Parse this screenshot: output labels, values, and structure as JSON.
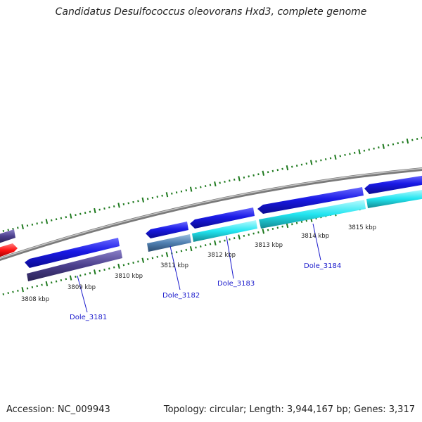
{
  "title": "Candidatus Desulfococcus oleovorans Hxd3, complete genome",
  "footer": {
    "accession": "Accession: NC_009943",
    "summary": "Topology: circular; Length: 3,944,167 bp; Genes: 3,317"
  },
  "ruler": [
    {
      "label": "3808 kbp"
    },
    {
      "label": "3809 kbp"
    },
    {
      "label": "3810 kbp"
    },
    {
      "label": "3811 kbp"
    },
    {
      "label": "3812 kbp"
    },
    {
      "label": "3813 kbp"
    },
    {
      "label": "3814 kbp"
    },
    {
      "label": "3815 kbp"
    }
  ],
  "genes": [
    {
      "name": "Dole_3181"
    },
    {
      "name": "Dole_3182"
    },
    {
      "name": "Dole_3183"
    },
    {
      "name": "Dole_3184"
    }
  ],
  "colors": {
    "backbone": "#8a8a8a",
    "tick": "#1f7a1f",
    "forward_gene": "#1a1ae6",
    "cds_purple": "#4b3f8c",
    "cds_cyan": "#22e5f0",
    "cds_steel": "#4f7fb0",
    "rna_red": "#ff1010",
    "gene_label": "#1a1acc"
  }
}
